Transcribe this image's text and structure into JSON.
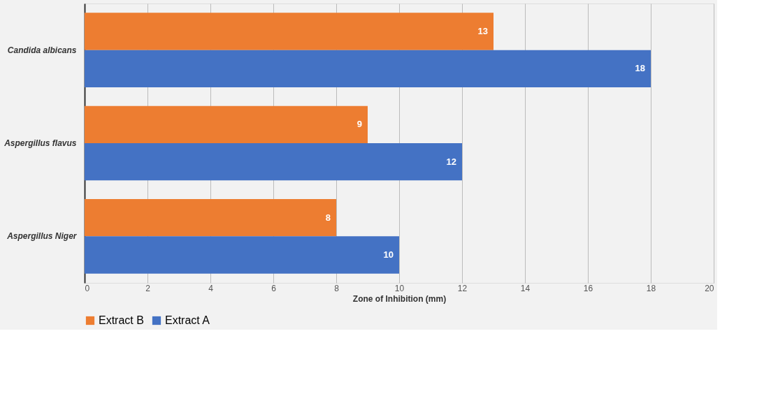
{
  "chart_data": {
    "type": "bar",
    "orientation": "horizontal",
    "xlabel": "Zone of Inhibition (mm)",
    "categories": [
      "Candida albicans",
      "Aspergillus flavus",
      "Aspergillus Niger"
    ],
    "series": [
      {
        "name": "Extract B",
        "color": "#ed7d31",
        "values": [
          13,
          9,
          8
        ]
      },
      {
        "name": "Extract A",
        "color": "#4472c4",
        "values": [
          18,
          12,
          10
        ]
      }
    ],
    "xlim": [
      0,
      20
    ],
    "xticks": [
      0,
      2,
      4,
      6,
      8,
      10,
      12,
      14,
      16,
      18,
      20
    ],
    "grid": "x",
    "legend": "bottom",
    "data_labels": true
  }
}
